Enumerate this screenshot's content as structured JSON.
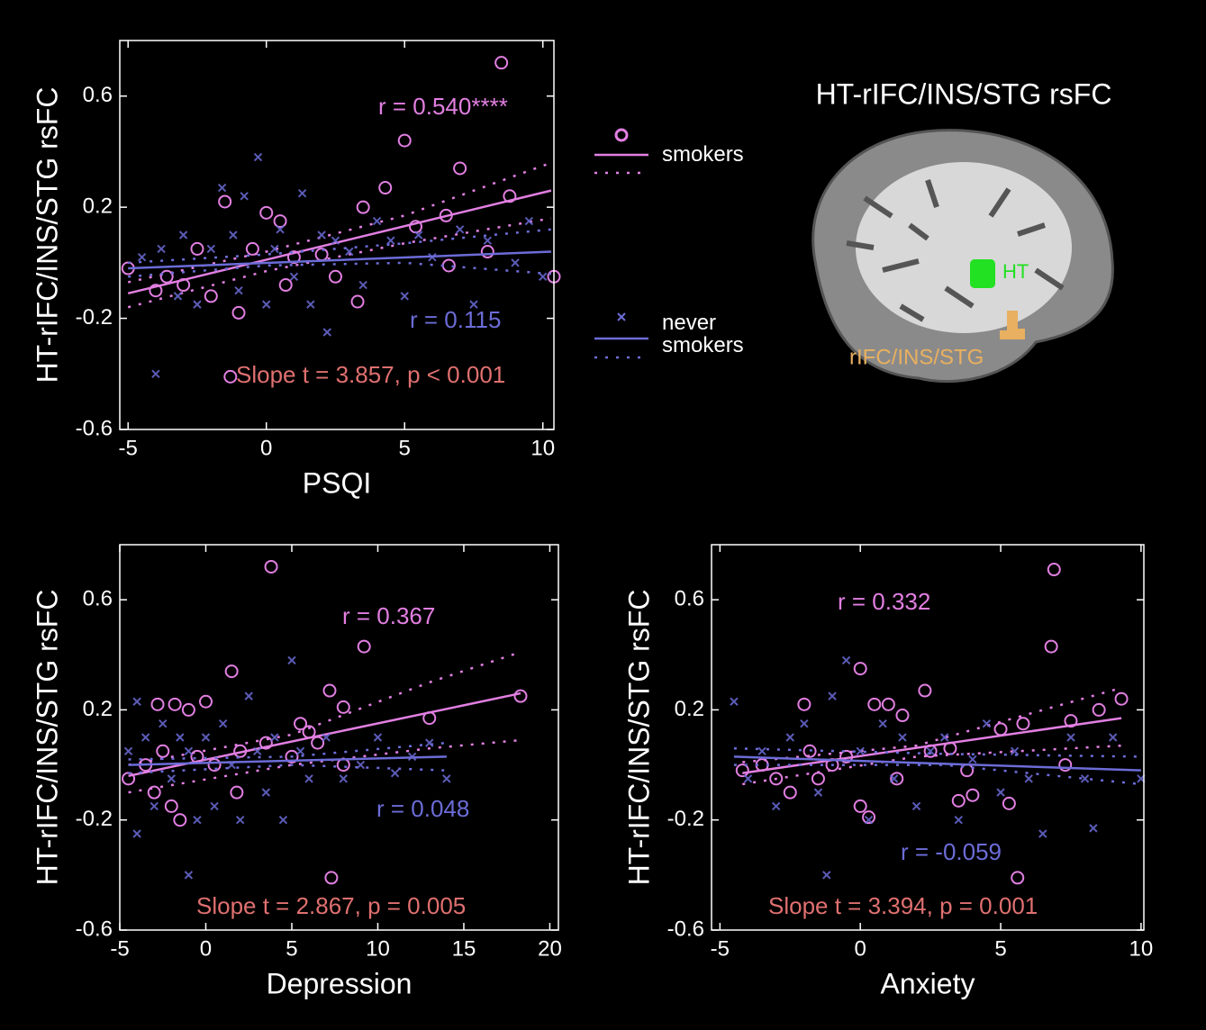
{
  "chart_data": [
    {
      "type": "scatter",
      "x_label": "PSQI",
      "y_label": "HT-rIFC/INS/STG rsFC",
      "xlim": [
        -5.3,
        10.4
      ],
      "ylim": [
        -0.6,
        0.8
      ],
      "xticks": [
        -5,
        0,
        5,
        10
      ],
      "yticks": [
        -0.6,
        -0.2,
        0.2,
        0.6
      ],
      "grid": false,
      "series": [
        {
          "name": "smokers",
          "color": "#e27fe2",
          "marker": "o",
          "x": [
            -5,
            -4,
            -3.6,
            -3,
            -2.5,
            -2,
            -1.5,
            -1.3,
            -1,
            -0.5,
            0,
            0.5,
            0.7,
            1,
            2,
            2.5,
            3.3,
            3.5,
            4.3,
            5,
            5.4,
            6.5,
            6.6,
            7,
            8,
            8.5,
            8.8,
            10.4
          ],
          "values": [
            -0.02,
            -0.1,
            -0.05,
            -0.08,
            0.05,
            -0.12,
            0.22,
            -0.41,
            -0.18,
            0.05,
            0.18,
            0.15,
            -0.08,
            0.02,
            0.03,
            -0.05,
            -0.14,
            0.2,
            0.27,
            0.44,
            0.13,
            0.17,
            -0.01,
            0.34,
            0.04,
            0.72,
            0.24,
            -0.05
          ],
          "fit": {
            "x": [
              -5,
              10.3
            ],
            "values": [
              -0.11,
              0.26
            ]
          },
          "ci": {
            "x": [
              -5,
              0,
              5,
              10.3
            ],
            "upper": [
              -0.07,
              0.04,
              0.17,
              0.36
            ],
            "lower": [
              -0.16,
              -0.03,
              0.07,
              0.16
            ]
          }
        },
        {
          "name": "never smokers",
          "color": "#6c6cd8",
          "marker": "x",
          "x": [
            -4.5,
            -4,
            -3.8,
            -3.2,
            -3,
            -2.5,
            -2,
            -1.6,
            -1.2,
            -1,
            -0.8,
            -0.3,
            0,
            0.3,
            0.5,
            1,
            1.3,
            1.6,
            2,
            2.2,
            2.5,
            3,
            3.5,
            4,
            4.5,
            5,
            5.5,
            6,
            7,
            7.5,
            8,
            9,
            9.5,
            10
          ],
          "values": [
            0.02,
            -0.4,
            0.05,
            -0.12,
            0.1,
            -0.15,
            0.05,
            0.27,
            0.1,
            -0.1,
            0.24,
            0.38,
            -0.15,
            0.05,
            0.12,
            -0.05,
            0.25,
            -0.15,
            0.1,
            -0.25,
            0.08,
            0.04,
            -0.08,
            0.15,
            0.08,
            -0.12,
            0.1,
            0.02,
            0.12,
            -0.15,
            0.08,
            0.0,
            0.15,
            -0.05
          ],
          "fit": {
            "x": [
              -5,
              10.3
            ],
            "values": [
              -0.02,
              0.04
            ]
          },
          "ci": {
            "x": [
              -5,
              0,
              5,
              10.3
            ],
            "upper": [
              0.0,
              0.03,
              0.07,
              0.12
            ],
            "lower": [
              -0.05,
              -0.01,
              0.0,
              -0.04
            ]
          }
        }
      ],
      "annotations": [
        {
          "text": "r = 0.540****",
          "color": "#e27fe2"
        },
        {
          "text": "r = 0.115",
          "color": "#6c6cd8"
        },
        {
          "text": "Slope t = 3.857, p < 0.001",
          "color": "#e07070"
        }
      ]
    },
    {
      "type": "scatter",
      "x_label": "Depression",
      "y_label": "HT-rIFC/INS/STG rsFC",
      "xlim": [
        -5,
        20.5
      ],
      "ylim": [
        -0.6,
        0.8
      ],
      "xticks": [
        -5,
        0,
        5,
        10,
        15,
        20
      ],
      "yticks": [
        -0.6,
        -0.2,
        0.2,
        0.6
      ],
      "grid": false,
      "series": [
        {
          "name": "smokers",
          "color": "#e27fe2",
          "marker": "o",
          "x": [
            -4.5,
            -3.5,
            -3,
            -2.8,
            -2.5,
            -2,
            -1.8,
            -1.5,
            -1,
            -0.5,
            0,
            0.5,
            1.5,
            1.8,
            2,
            3.5,
            3.8,
            5,
            5.5,
            6,
            6.5,
            7.2,
            7.3,
            8,
            8,
            9.2,
            13,
            18.3
          ],
          "values": [
            -0.05,
            0.0,
            -0.1,
            0.22,
            0.05,
            -0.15,
            0.22,
            -0.2,
            0.2,
            0.03,
            0.23,
            0.0,
            0.34,
            -0.1,
            0.05,
            0.08,
            0.72,
            0.03,
            0.15,
            0.12,
            0.08,
            0.27,
            -0.41,
            0.21,
            0.0,
            0.43,
            0.17,
            0.25
          ],
          "fit": {
            "x": [
              -4.5,
              18.3
            ],
            "values": [
              -0.04,
              0.26
            ]
          },
          "ci": {
            "x": [
              -4.5,
              5,
              13,
              18.3
            ],
            "upper": [
              0.0,
              0.11,
              0.3,
              0.41
            ],
            "lower": [
              -0.1,
              0.0,
              0.06,
              0.09
            ]
          }
        },
        {
          "name": "never smokers",
          "color": "#6c6cd8",
          "marker": "x",
          "x": [
            -4.5,
            -4,
            -4,
            -3.5,
            -3,
            -2.5,
            -2,
            -1.5,
            -1,
            -1,
            -0.5,
            0,
            0.5,
            1,
            1.5,
            2,
            2.5,
            3,
            3.5,
            4,
            4.5,
            5,
            5.5,
            6,
            7,
            8,
            9,
            10,
            11,
            12,
            13,
            14
          ],
          "values": [
            0.05,
            -0.25,
            0.23,
            0.1,
            -0.15,
            0.15,
            -0.05,
            0.1,
            -0.4,
            0.05,
            -0.2,
            0.1,
            -0.15,
            0.15,
            0.0,
            -0.2,
            0.25,
            0.05,
            -0.1,
            0.1,
            -0.2,
            0.38,
            0.05,
            -0.05,
            0.1,
            -0.05,
            0.0,
            0.1,
            -0.03,
            0.03,
            0.08,
            -0.05
          ],
          "fit": {
            "x": [
              -4.5,
              14
            ],
            "values": [
              0.0,
              0.03
            ]
          },
          "ci": {
            "x": [
              -4.5,
              5,
              14
            ],
            "upper": [
              0.02,
              0.03,
              0.08
            ],
            "lower": [
              -0.03,
              0.0,
              -0.02
            ]
          }
        }
      ],
      "annotations": [
        {
          "text": "r = 0.367",
          "color": "#e27fe2"
        },
        {
          "text": "r = 0.048",
          "color": "#6c6cd8"
        },
        {
          "text": "Slope t = 2.867, p = 0.005",
          "color": "#e07070"
        }
      ]
    },
    {
      "type": "scatter",
      "x_label": "Anxiety",
      "y_label": "HT-rIFC/INS/STG rsFC",
      "xlim": [
        -5.3,
        10.1
      ],
      "ylim": [
        -0.6,
        0.8
      ],
      "xticks": [
        -5,
        0,
        5,
        10
      ],
      "yticks": [
        -0.6,
        -0.2,
        0.2,
        0.6
      ],
      "grid": false,
      "series": [
        {
          "name": "smokers",
          "color": "#e27fe2",
          "marker": "o",
          "x": [
            -4.2,
            -3.5,
            -3,
            -2.5,
            -2,
            -1.8,
            -1.5,
            -1,
            -0.5,
            0,
            0,
            0.3,
            0.5,
            1,
            1.3,
            1.5,
            2.3,
            2.5,
            3.2,
            3.5,
            3.8,
            4,
            5,
            5.3,
            5.6,
            5.8,
            6.8,
            6.9,
            7.3,
            7.5,
            8.5,
            9.3
          ],
          "values": [
            -0.02,
            0.0,
            -0.05,
            -0.1,
            0.22,
            0.05,
            -0.05,
            0.0,
            0.03,
            -0.15,
            0.35,
            -0.19,
            0.22,
            0.22,
            -0.05,
            0.18,
            0.27,
            0.05,
            0.06,
            -0.13,
            -0.02,
            -0.11,
            0.13,
            -0.14,
            -0.41,
            0.15,
            0.43,
            0.71,
            0.0,
            0.16,
            0.2,
            0.24
          ],
          "fit": {
            "x": [
              -4.2,
              9.3
            ],
            "values": [
              -0.03,
              0.17
            ]
          },
          "ci": {
            "x": [
              -4.2,
              2,
              9.3
            ],
            "upper": [
              0.01,
              0.07,
              0.28
            ],
            "lower": [
              -0.07,
              0.03,
              0.07
            ]
          }
        },
        {
          "name": "never smokers",
          "color": "#6c6cd8",
          "marker": "x",
          "x": [
            -4.5,
            -4,
            -3.5,
            -3,
            -2.5,
            -2,
            -1.5,
            -1.2,
            -1,
            -0.5,
            0,
            0.3,
            0.8,
            1.2,
            1.5,
            2,
            2.5,
            3,
            3.5,
            4,
            4.5,
            5,
            5.5,
            6,
            6.5,
            7.5,
            8,
            8.3,
            9,
            10
          ],
          "values": [
            0.23,
            -0.05,
            0.05,
            -0.15,
            0.1,
            0.15,
            -0.1,
            -0.4,
            0.25,
            0.38,
            0.05,
            -0.2,
            0.15,
            -0.05,
            0.1,
            -0.15,
            0.05,
            0.1,
            -0.2,
            0.02,
            0.15,
            -0.1,
            0.05,
            -0.05,
            -0.25,
            0.1,
            -0.05,
            -0.23,
            0.1,
            -0.05
          ],
          "fit": {
            "x": [
              -4.5,
              10
            ],
            "values": [
              0.03,
              -0.02
            ]
          },
          "ci": {
            "x": [
              -4.5,
              3,
              10
            ],
            "upper": [
              0.06,
              0.04,
              0.03
            ],
            "lower": [
              0.0,
              0.0,
              -0.07
            ]
          }
        }
      ],
      "annotations": [
        {
          "text": "r = 0.332",
          "color": "#e27fe2"
        },
        {
          "text": "r = -0.059",
          "color": "#6c6cd8"
        },
        {
          "text": "Slope t = 3.394, p = 0.001",
          "color": "#e07070"
        }
      ]
    }
  ],
  "brain_panel": {
    "title": "HT-rIFC/INS/STG rsFC",
    "regions": [
      "HT",
      "rIFC/INS/STG"
    ]
  }
}
